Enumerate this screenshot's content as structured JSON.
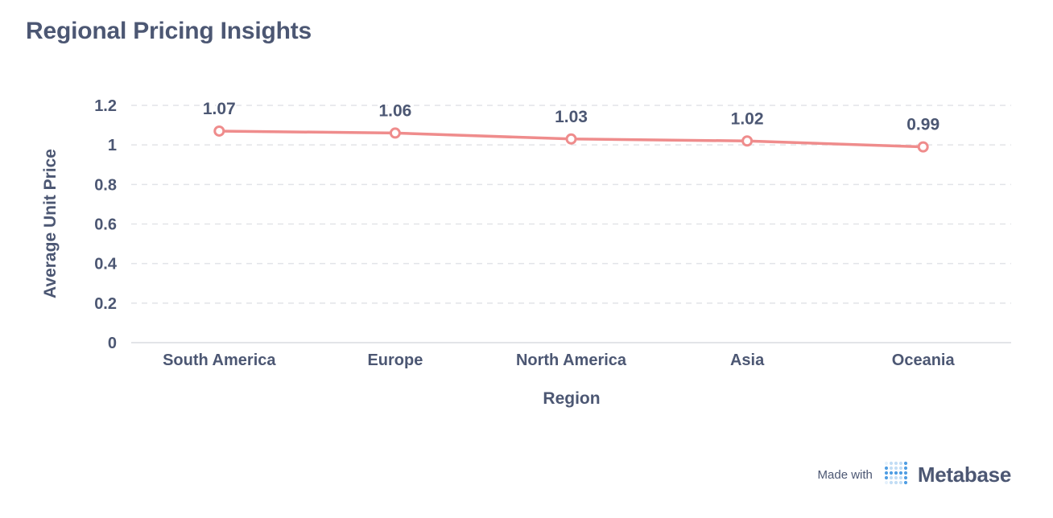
{
  "card": {
    "title": "Regional Pricing Insights"
  },
  "footer": {
    "made_with": "Made with",
    "brand": "Metabase"
  },
  "colors": {
    "text": "#4C5773",
    "series_line": "#EF8C8C",
    "grid": "#E2E4E8",
    "axis": "#D8DBE0",
    "logo_dots": "#509EE3"
  },
  "chart_data": {
    "type": "line",
    "title": "Regional Pricing Insights",
    "xlabel": "Region",
    "ylabel": "Average Unit Price",
    "categories": [
      "South America",
      "Europe",
      "North America",
      "Asia",
      "Oceania"
    ],
    "series": [
      {
        "values": [
          1.07,
          1.06,
          1.03,
          1.02,
          0.99
        ],
        "data_labels": [
          "1.07",
          "1.06",
          "1.03",
          "1.02",
          "0.99"
        ]
      }
    ],
    "ylim": [
      0,
      1.2
    ],
    "yticks": [
      "0",
      "0.2",
      "0.4",
      "0.6",
      "0.8",
      "1",
      "1.2"
    ],
    "grid": true,
    "legend": "none"
  }
}
